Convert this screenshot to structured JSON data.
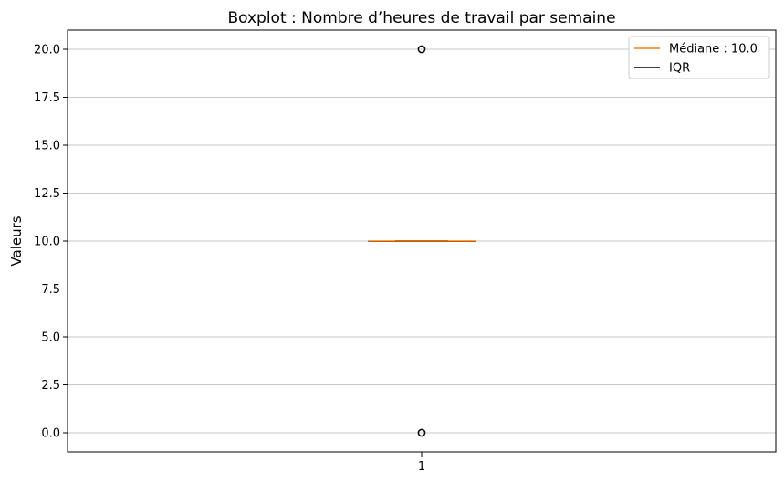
{
  "chart_data": {
    "type": "boxplot",
    "title": "Boxplot : Nombre d’heures de travail par semaine",
    "xlabel": "",
    "ylabel": "Valeurs",
    "categories": [
      "1"
    ],
    "ylim": [
      -1.0,
      21.0
    ],
    "yticks": [
      "0.0",
      "2.5",
      "5.0",
      "7.5",
      "10.0",
      "12.5",
      "15.0",
      "17.5",
      "20.0"
    ],
    "grid": "y-axis",
    "legend_position": "top-right",
    "legend": [
      {
        "label": "Médiane : 10.0",
        "color": "#ff7f0e"
      },
      {
        "label": "IQR",
        "color": "#000000"
      }
    ],
    "boxes": [
      {
        "category": "1",
        "q1": 10.0,
        "median": 10.0,
        "q3": 10.0,
        "whisker_low": 10.0,
        "whisker_high": 10.0,
        "outliers": [
          0.0,
          20.0
        ]
      }
    ],
    "colors": {
      "median": "#ff7f0e",
      "box": "#000000",
      "grid": "#c8c8c8"
    }
  }
}
